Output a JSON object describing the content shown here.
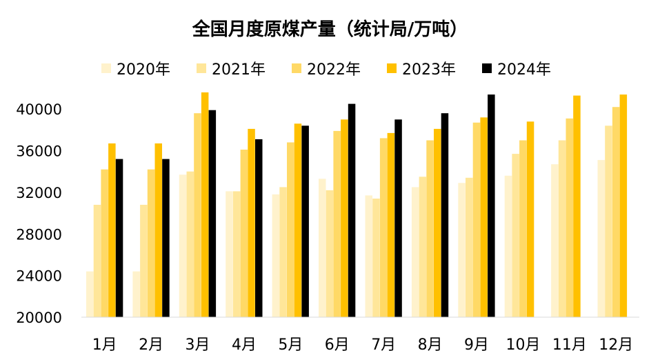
{
  "chart_data": {
    "type": "bar",
    "title": "全国月度原煤产量（统计局/万吨）",
    "xlabel": "",
    "ylabel": "",
    "categories": [
      "1月",
      "2月",
      "3月",
      "4月",
      "5月",
      "6月",
      "7月",
      "8月",
      "9月",
      "10月",
      "11月",
      "12月"
    ],
    "series": [
      {
        "name": "2020年",
        "color": "#FFF2CC",
        "values": [
          24400,
          24400,
          33700,
          32100,
          31800,
          33300,
          31700,
          32500,
          32900,
          33600,
          34700,
          35100
        ]
      },
      {
        "name": "2021年",
        "color": "#FFE699",
        "values": [
          30800,
          30800,
          34000,
          32100,
          32500,
          32200,
          31400,
          33500,
          33400,
          35700,
          37000,
          38400
        ]
      },
      {
        "name": "2022年",
        "color": "#FFD966",
        "values": [
          34200,
          34200,
          39600,
          36100,
          36800,
          37900,
          37200,
          37000,
          38700,
          37000,
          39100,
          40200
        ]
      },
      {
        "name": "2023年",
        "color": "#FFC000",
        "values": [
          36700,
          36700,
          41600,
          38100,
          38600,
          39000,
          37700,
          38100,
          39200,
          38800,
          41300,
          41400
        ]
      },
      {
        "name": "2024年",
        "color": "#000000",
        "values": [
          35200,
          35200,
          39900,
          37100,
          38400,
          40500,
          39000,
          39600,
          41400,
          null,
          null,
          null
        ]
      }
    ],
    "yticks": [
      "20000",
      "24000",
      "28000",
      "32000",
      "36000",
      "40000"
    ],
    "ylim": [
      20000,
      42000
    ],
    "legend_position": "top",
    "grid": false
  }
}
